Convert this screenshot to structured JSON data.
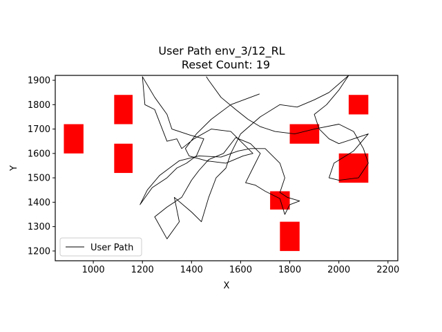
{
  "chart_data": {
    "type": "scatter",
    "title": "User Path env_3/12_RL",
    "subtitle": "Reset Count: 19",
    "xlabel": "X",
    "ylabel": "Y",
    "xlim": [
      845,
      2240
    ],
    "ylim": [
      1160,
      1920
    ],
    "xticks": [
      1000,
      1200,
      1400,
      1600,
      1800,
      2000,
      2200
    ],
    "yticks": [
      1200,
      1300,
      1400,
      1500,
      1600,
      1700,
      1800,
      1900
    ],
    "grid": false,
    "legend": {
      "position": "lower-left",
      "entries": [
        "User Path"
      ]
    },
    "colors": {
      "path": "#000000",
      "obstacle": "#ff0000"
    },
    "obstacles": [
      {
        "x0": 880,
        "x1": 960,
        "y0": 1600,
        "y1": 1720
      },
      {
        "x0": 1085,
        "x1": 1160,
        "y0": 1720,
        "y1": 1840
      },
      {
        "x0": 1085,
        "x1": 1160,
        "y0": 1520,
        "y1": 1640
      },
      {
        "x0": 1800,
        "x1": 1920,
        "y0": 1640,
        "y1": 1720
      },
      {
        "x0": 2040,
        "x1": 2120,
        "y0": 1760,
        "y1": 1840
      },
      {
        "x0": 2000,
        "x1": 2120,
        "y0": 1480,
        "y1": 1600
      },
      {
        "x0": 1720,
        "x1": 1800,
        "y0": 1370,
        "y1": 1445
      },
      {
        "x0": 1760,
        "x1": 1840,
        "y0": 1200,
        "y1": 1320
      }
    ],
    "path": [
      [
        1677,
        1844
      ],
      [
        1560,
        1800
      ],
      [
        1480,
        1740
      ],
      [
        1420,
        1680
      ],
      [
        1375,
        1620
      ],
      [
        1390,
        1590
      ],
      [
        1460,
        1570
      ],
      [
        1540,
        1560
      ],
      [
        1610,
        1590
      ],
      [
        1650,
        1600
      ],
      [
        1560,
        1690
      ],
      [
        1480,
        1700
      ],
      [
        1410,
        1660
      ],
      [
        1360,
        1620
      ],
      [
        1340,
        1660
      ],
      [
        1300,
        1650
      ],
      [
        1250,
        1780
      ],
      [
        1210,
        1800
      ],
      [
        1200,
        1915
      ],
      [
        1250,
        1830
      ],
      [
        1300,
        1760
      ],
      [
        1320,
        1700
      ],
      [
        1395,
        1675
      ],
      [
        1450,
        1660
      ],
      [
        1420,
        1590
      ],
      [
        1380,
        1560
      ],
      [
        1340,
        1540
      ],
      [
        1300,
        1500
      ],
      [
        1240,
        1460
      ],
      [
        1190,
        1390
      ],
      [
        1220,
        1450
      ],
      [
        1270,
        1510
      ],
      [
        1350,
        1570
      ],
      [
        1430,
        1590
      ],
      [
        1520,
        1585
      ],
      [
        1590,
        1610
      ],
      [
        1640,
        1620
      ],
      [
        1700,
        1620
      ],
      [
        1760,
        1560
      ],
      [
        1780,
        1500
      ],
      [
        1760,
        1440
      ],
      [
        1790,
        1420
      ],
      [
        1840,
        1405
      ],
      [
        1800,
        1390
      ],
      [
        1780,
        1350
      ],
      [
        1760,
        1415
      ],
      [
        1700,
        1445
      ],
      [
        1660,
        1470
      ],
      [
        1620,
        1480
      ],
      [
        1650,
        1540
      ],
      [
        1680,
        1600
      ],
      [
        1640,
        1640
      ],
      [
        1580,
        1665
      ],
      [
        1530,
        1600
      ],
      [
        1470,
        1575
      ],
      [
        1430,
        1530
      ],
      [
        1400,
        1490
      ],
      [
        1360,
        1420
      ],
      [
        1300,
        1380
      ],
      [
        1250,
        1340
      ],
      [
        1300,
        1250
      ],
      [
        1350,
        1320
      ],
      [
        1330,
        1420
      ],
      [
        1400,
        1360
      ],
      [
        1440,
        1320
      ],
      [
        1470,
        1420
      ],
      [
        1500,
        1500
      ],
      [
        1540,
        1540
      ],
      [
        1560,
        1600
      ],
      [
        1600,
        1680
      ],
      [
        1680,
        1750
      ],
      [
        1760,
        1800
      ],
      [
        1830,
        1790
      ],
      [
        1900,
        1820
      ],
      [
        1960,
        1850
      ],
      [
        2040,
        1920
      ],
      [
        2000,
        1860
      ],
      [
        1950,
        1800
      ],
      [
        1900,
        1760
      ],
      [
        1920,
        1700
      ],
      [
        1960,
        1660
      ],
      [
        2000,
        1640
      ],
      [
        2060,
        1660
      ],
      [
        2120,
        1680
      ],
      [
        2060,
        1610
      ],
      [
        1980,
        1560
      ],
      [
        1960,
        1500
      ],
      [
        2000,
        1490
      ],
      [
        2080,
        1500
      ],
      [
        2120,
        1560
      ],
      [
        2100,
        1620
      ],
      [
        2060,
        1690
      ],
      [
        2000,
        1720
      ],
      [
        1900,
        1700
      ],
      [
        1820,
        1680
      ],
      [
        1740,
        1690
      ],
      [
        1680,
        1710
      ],
      [
        1630,
        1740
      ],
      [
        1580,
        1780
      ],
      [
        1520,
        1830
      ],
      [
        1470,
        1900
      ],
      [
        1460,
        1915
      ]
    ]
  }
}
